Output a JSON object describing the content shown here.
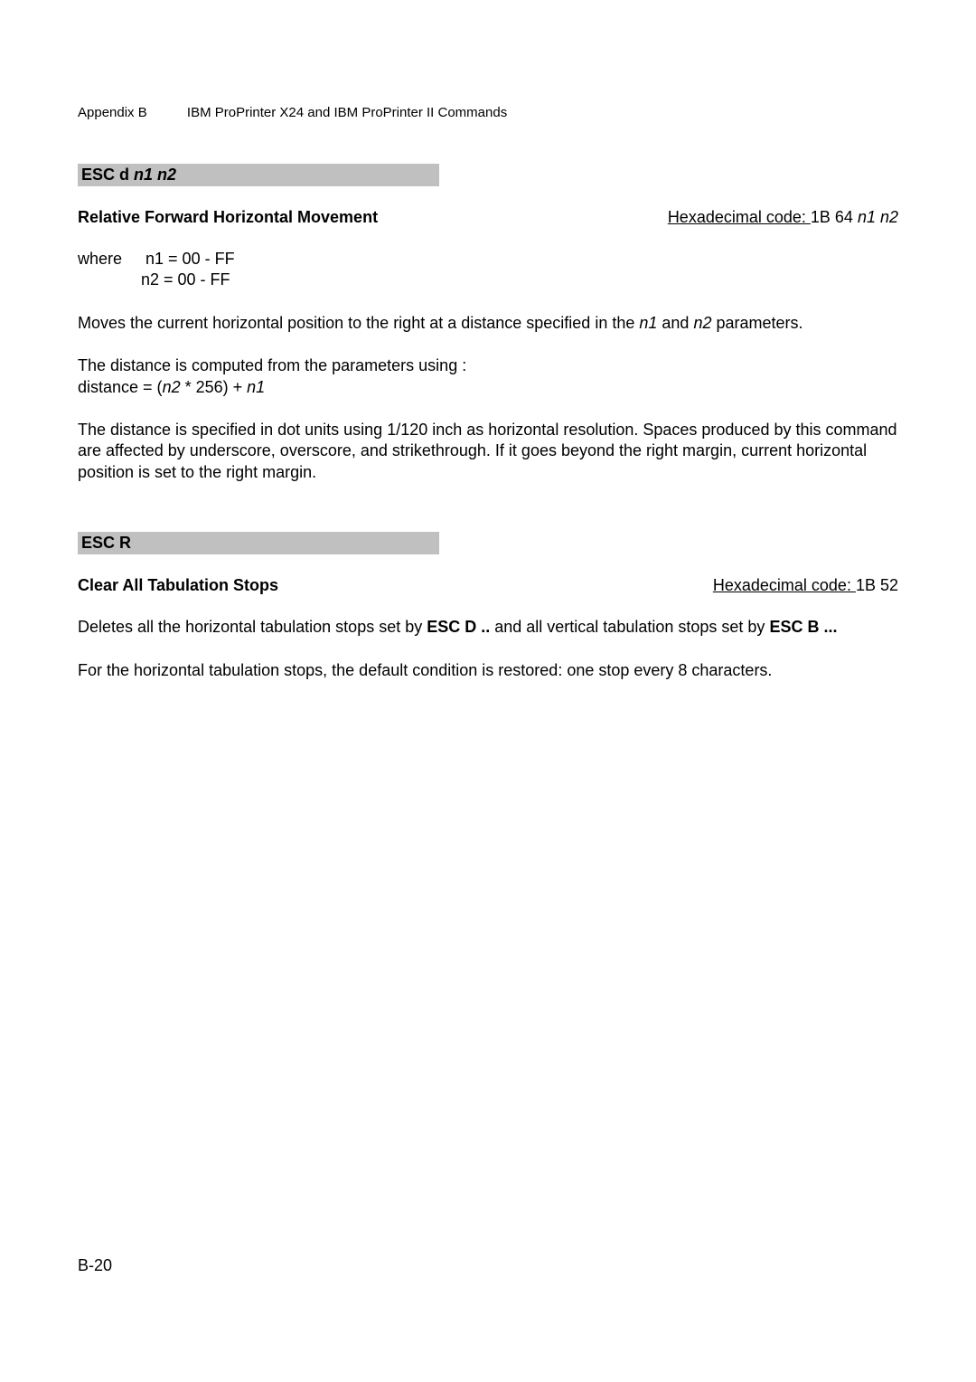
{
  "header": {
    "appendix": "Appendix B",
    "title": "IBM ProPrinter X24 and IBM ProPrinter II Commands"
  },
  "section1": {
    "heading_prefix": "ESC d ",
    "heading_params": "n1 n2",
    "subhead_left": "Relative Forward Horizontal Movement",
    "hex_label": "Hexadecimal code: ",
    "hex_value": "1B 64 ",
    "hex_params": "n1 n2",
    "where_label": "where",
    "where_line1_param": "n1",
    "where_line1_rest": " = 00 - FF",
    "where_line2": "n2 = 00 - FF",
    "para1_a": "Moves the current horizontal position to the right at a distance specified in the ",
    "para1_n1": "n1",
    "para1_b": " and ",
    "para1_n2": "n2",
    "para1_c": " parameters.",
    "para2_a": "The distance is computed from the parameters using :",
    "para2_b": "distance = (",
    "para2_n2": "n2",
    "para2_c": " * 256) + ",
    "para2_n1": "n1",
    "para3": "The distance is specified in dot units using 1/120 inch as horizontal resolution. Spaces produced by this command are affected by underscore, overscore, and strikethrough. If it goes beyond the right margin, current horizontal position is set to the right margin."
  },
  "section2": {
    "heading": "ESC R",
    "subhead_left": "Clear All Tabulation Stops",
    "hex_label": "Hexadecimal code: ",
    "hex_value": "1B 52",
    "para1_a": "Deletes all the horizontal tabulation stops set by ",
    "para1_escd": "ESC D ..",
    "para1_b": " and all vertical tabulation stops set by ",
    "para1_escb": "ESC B ...",
    "para2": "For the horizontal tabulation stops, the default condition is restored: one stop every 8 characters."
  },
  "page_number": "B-20"
}
